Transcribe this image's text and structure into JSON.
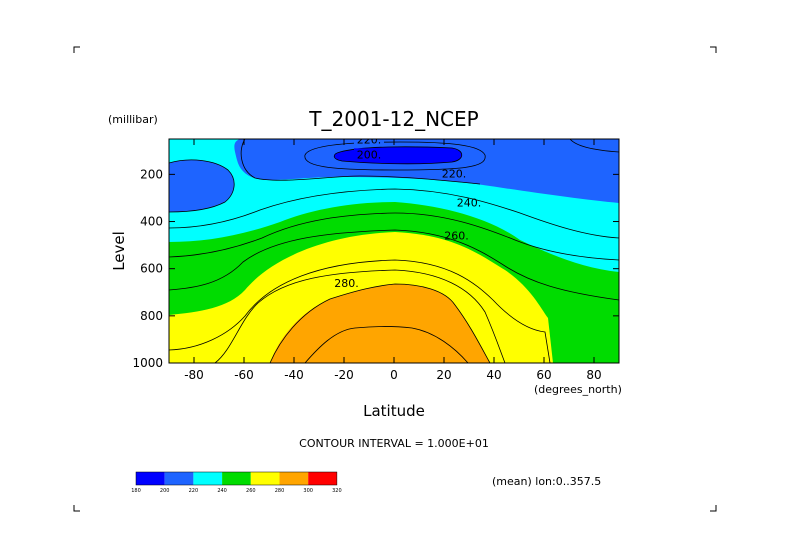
{
  "chart_data": {
    "type": "contour",
    "title": "T_2001-12_NCEP",
    "ylabel": "Level",
    "yunits": "(millibar)",
    "xlabel": "Latitude",
    "xunits": "(degrees_north)",
    "xlim": [
      -90,
      90
    ],
    "ylim": [
      1000,
      50
    ],
    "x_ticks": [
      -80,
      -60,
      -40,
      -20,
      0,
      20,
      40,
      60,
      80
    ],
    "y_ticks": [
      200,
      400,
      600,
      800,
      1000
    ],
    "contour_labels": [
      {
        "value": "220.",
        "lat": -10,
        "level": 52
      },
      {
        "value": "200.",
        "lat": -10,
        "level": 115
      },
      {
        "value": "220.",
        "lat": 24,
        "level": 196
      },
      {
        "value": "240.",
        "lat": 30,
        "level": 320
      },
      {
        "value": "260.",
        "lat": 25,
        "level": 460
      },
      {
        "value": "280.",
        "lat": -19,
        "level": 660
      }
    ],
    "contour_interval_text": "CONTOUR INTERVAL = 1.000E+01",
    "colorbar": {
      "levels": [
        "180",
        "200",
        "220",
        "240",
        "260",
        "280",
        "300",
        "320"
      ],
      "colors": [
        "#0000ff",
        "#1e64ff",
        "#00ffff",
        "#00dc00",
        "#ffff00",
        "#ffa500",
        "#ff0000"
      ]
    },
    "mean_note": "(mean) lon:0..357.5"
  }
}
